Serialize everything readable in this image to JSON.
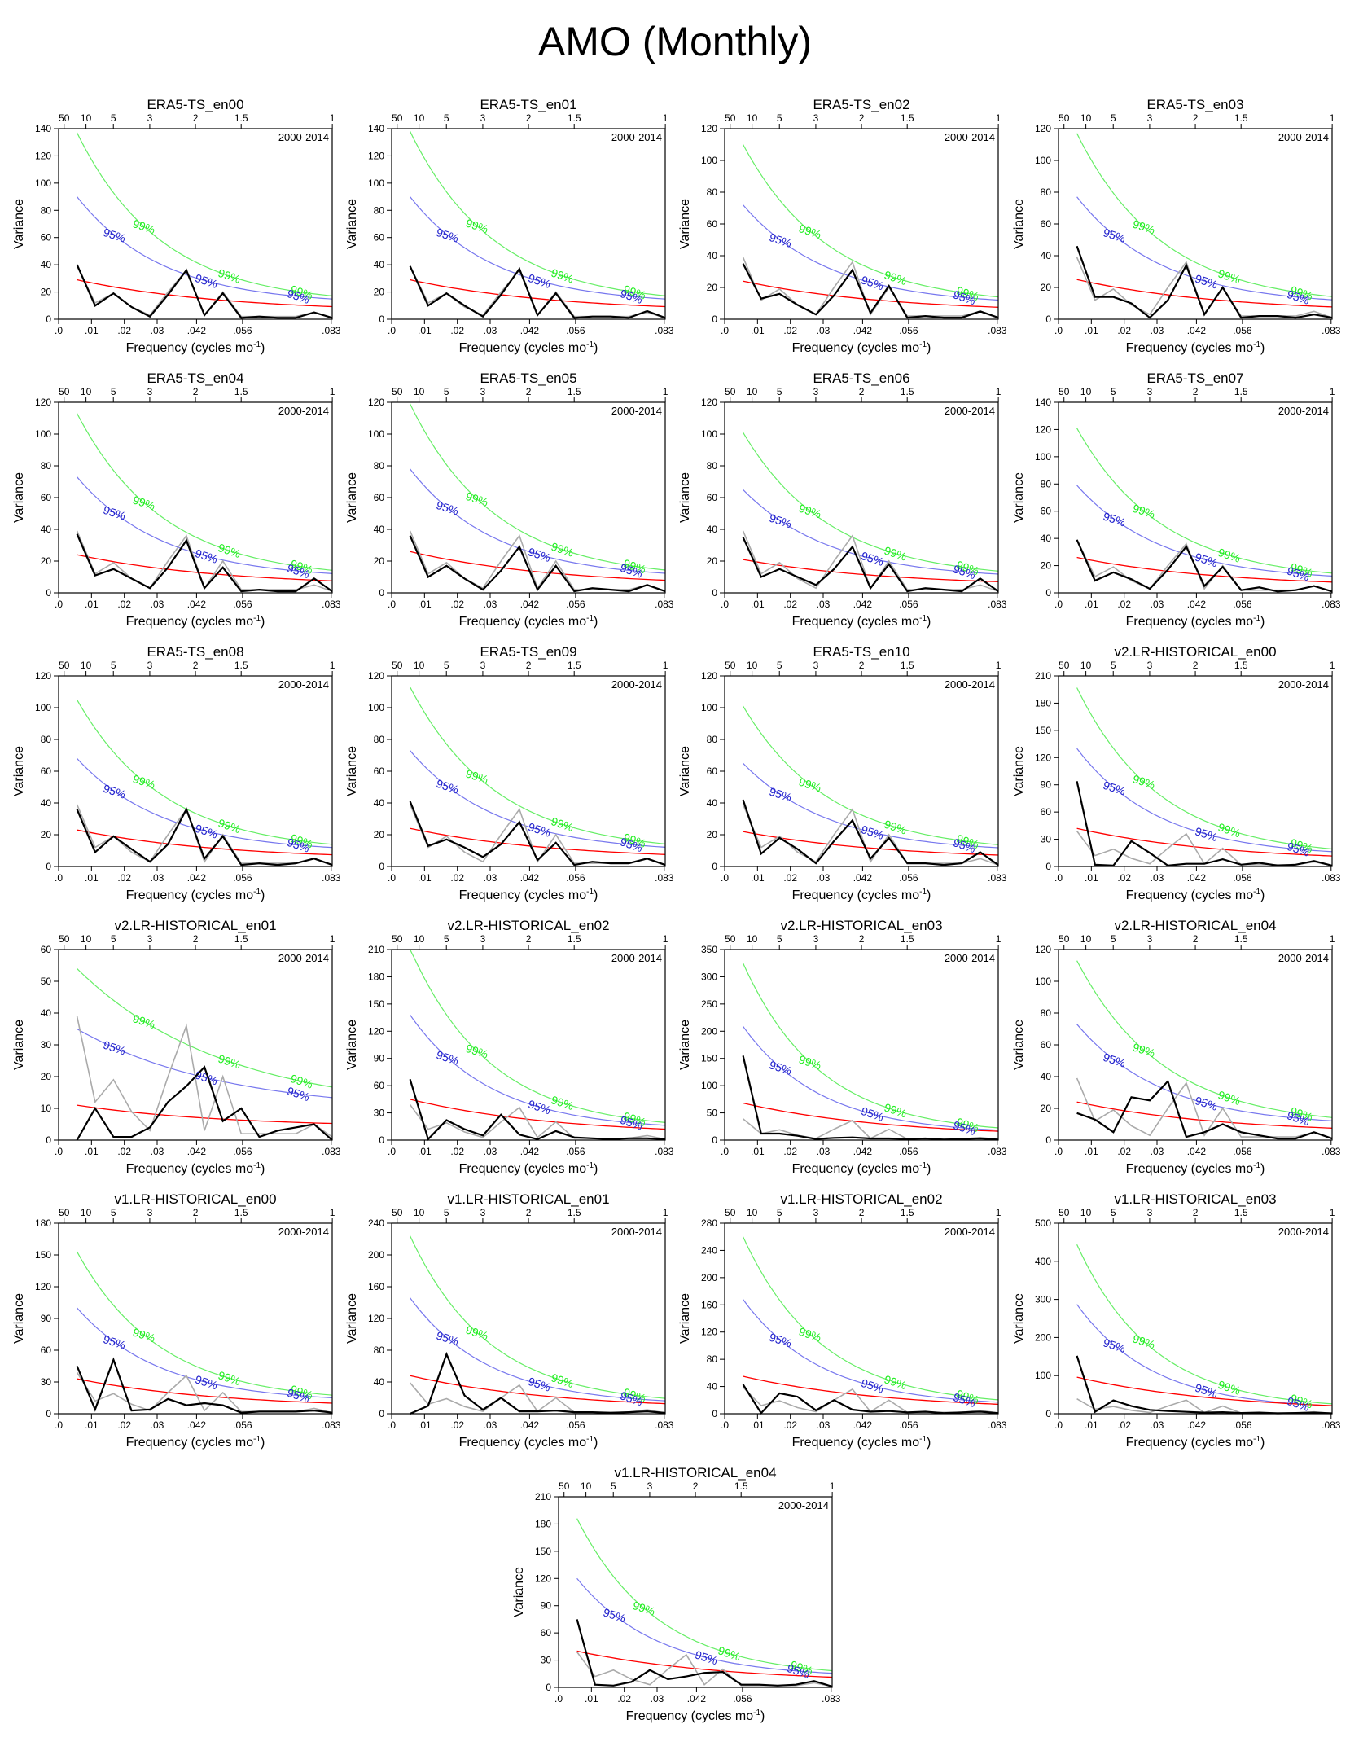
{
  "page_title": "AMO (Monthly)",
  "chart_data": {
    "type": "line",
    "title": "AMO (Monthly)",
    "shared": {
      "xlabel": "Frequency (cycles mo",
      "xlabel_sup": "-1",
      "ylabel": "Variance",
      "period_label": "2000-2014",
      "x_ticks": [
        0.0,
        0.01,
        0.02,
        0.03,
        0.042,
        0.056,
        0.083
      ],
      "x_tick_labels": [
        ".0",
        ".01",
        ".02",
        ".03",
        ".042",
        ".056",
        ".083"
      ],
      "top_ticks": [
        0.02,
        0.1,
        0.2,
        0.333,
        0.5,
        0.667,
        1.0
      ],
      "top_tick_labels": [
        "50",
        "10",
        "5",
        "3",
        "2",
        "1.5",
        "1"
      ],
      "xlim": [
        0,
        0.0833
      ],
      "freq": [
        0.0056,
        0.0111,
        0.0167,
        0.0222,
        0.0278,
        0.0333,
        0.0389,
        0.0444,
        0.05,
        0.0556,
        0.0611,
        0.0667,
        0.0722,
        0.0778,
        0.0833
      ],
      "legend": [
        {
          "name": "spectrum",
          "color": "#000000"
        },
        {
          "name": "spectrum (reference)",
          "color": "#aaaaaa"
        },
        {
          "name": "red-noise fit",
          "color": "#ff0000"
        },
        {
          "name": "95%",
          "color": "#2222cc"
        },
        {
          "name": "99%",
          "color": "#22ee22"
        }
      ],
      "conf_label_95": "95%",
      "conf_label_99": "99%",
      "gray_reference": [
        39,
        12,
        19,
        9,
        3,
        20,
        36,
        3,
        20,
        2,
        2,
        2,
        2,
        5,
        1
      ]
    },
    "panels": [
      {
        "title": "ERA5-TS_en00",
        "ymax": 140,
        "ystep": 20,
        "r0": 29,
        "r1": 5,
        "c95": 90,
        "c99": 137,
        "tail": 0.075,
        "black": [
          40,
          10,
          19,
          9,
          2,
          18,
          36,
          3,
          19,
          1,
          2,
          1,
          1,
          5,
          1
        ]
      },
      {
        "title": "ERA5-TS_en01",
        "ymax": 140,
        "ystep": 20,
        "r0": 29,
        "r1": 5,
        "c95": 90,
        "c99": 138,
        "tail": 0.075,
        "black": [
          39,
          10,
          19,
          10,
          2,
          18,
          37,
          3,
          19,
          1,
          2,
          2,
          1,
          6,
          1
        ]
      },
      {
        "title": "ERA5-TS_en02",
        "ymax": 120,
        "ystep": 20,
        "r0": 24,
        "r1": 4,
        "c95": 72,
        "c99": 110,
        "tail": 0.085,
        "black": [
          35,
          13,
          16,
          9,
          3,
          15,
          31,
          4,
          21,
          1,
          2,
          1,
          1,
          5,
          1
        ]
      },
      {
        "title": "ERA5-TS_en03",
        "ymax": 120,
        "ystep": 20,
        "r0": 25,
        "r1": 4,
        "c95": 77,
        "c99": 117,
        "tail": 0.08,
        "black": [
          46,
          14,
          14,
          10,
          1,
          12,
          34,
          3,
          20,
          1,
          2,
          2,
          1,
          3,
          1
        ]
      },
      {
        "title": "ERA5-TS_en04",
        "ymax": 120,
        "ystep": 20,
        "r0": 24,
        "r1": 4,
        "c95": 73,
        "c99": 113,
        "tail": 0.085,
        "black": [
          37,
          11,
          15,
          9,
          3,
          16,
          33,
          3,
          16,
          1,
          2,
          1,
          1,
          9,
          1
        ]
      },
      {
        "title": "ERA5-TS_en05",
        "ymax": 120,
        "ystep": 20,
        "r0": 26,
        "r1": 4,
        "c95": 78,
        "c99": 119,
        "tail": 0.08,
        "black": [
          36,
          10,
          17,
          9,
          2,
          14,
          29,
          2,
          17,
          1,
          3,
          2,
          1,
          5,
          1
        ]
      },
      {
        "title": "ERA5-TS_en06",
        "ymax": 120,
        "ystep": 20,
        "r0": 21,
        "r1": 4,
        "c95": 65,
        "c99": 101,
        "tail": 0.09,
        "black": [
          35,
          10,
          15,
          10,
          5,
          15,
          29,
          3,
          18,
          1,
          3,
          2,
          1,
          9,
          1
        ]
      },
      {
        "title": "ERA5-TS_en07",
        "ymax": 140,
        "ystep": 20,
        "r0": 26,
        "r1": 4,
        "c95": 79,
        "c99": 121,
        "tail": 0.08,
        "black": [
          39,
          9,
          15,
          10,
          3,
          17,
          34,
          5,
          19,
          2,
          4,
          1,
          2,
          5,
          1
        ]
      },
      {
        "title": "ERA5-TS_en08",
        "ymax": 120,
        "ystep": 20,
        "r0": 23,
        "r1": 4,
        "c95": 68,
        "c99": 105,
        "tail": 0.09,
        "black": [
          36,
          9,
          19,
          11,
          3,
          14,
          36,
          5,
          19,
          1,
          2,
          1,
          2,
          5,
          1
        ]
      },
      {
        "title": "ERA5-TS_en09",
        "ymax": 120,
        "ystep": 20,
        "r0": 24,
        "r1": 4,
        "c95": 73,
        "c99": 113,
        "tail": 0.085,
        "black": [
          41,
          13,
          17,
          12,
          6,
          14,
          28,
          4,
          15,
          1,
          3,
          2,
          2,
          5,
          1
        ]
      },
      {
        "title": "ERA5-TS_en10",
        "ymax": 120,
        "ystep": 20,
        "r0": 22,
        "r1": 4,
        "c95": 65,
        "c99": 101,
        "tail": 0.09,
        "black": [
          42,
          8,
          18,
          11,
          2,
          16,
          29,
          5,
          18,
          2,
          2,
          1,
          2,
          9,
          1
        ]
      },
      {
        "title": "v2.LR-HISTORICAL_en00",
        "ymax": 210,
        "ystep": 30,
        "r0": 42,
        "r1": 5,
        "c95": 130,
        "c99": 197,
        "tail": 0.06,
        "black": [
          94,
          2,
          1,
          28,
          15,
          1,
          3,
          3,
          8,
          2,
          4,
          1,
          2,
          6,
          1
        ]
      },
      {
        "title": "v2.LR-HISTORICAL_en01",
        "ymax": 60,
        "ystep": 10,
        "r0": 11,
        "r1": 4,
        "c95": 35,
        "c99": 54,
        "tail": 0.45,
        "black": [
          0,
          10,
          1,
          1,
          4,
          12,
          17,
          23,
          6,
          10,
          1,
          3,
          4,
          5,
          0
        ]
      },
      {
        "title": "v2.LR-HISTORICAL_en02",
        "ymax": 210,
        "ystep": 30,
        "r0": 45,
        "r1": 5,
        "c95": 138,
        "c99": 211,
        "tail": 0.05,
        "black": [
          67,
          1,
          22,
          12,
          5,
          28,
          6,
          1,
          10,
          3,
          2,
          1,
          2,
          2,
          1
        ]
      },
      {
        "title": "v2.LR-HISTORICAL_en03",
        "ymax": 350,
        "ystep": 50,
        "r0": 68,
        "r1": 5,
        "c95": 209,
        "c99": 325,
        "tail": 0.03,
        "black": [
          155,
          12,
          12,
          8,
          2,
          4,
          5,
          3,
          3,
          2,
          3,
          1,
          2,
          3,
          1
        ]
      },
      {
        "title": "v2.LR-HISTORICAL_en04",
        "ymax": 120,
        "ystep": 20,
        "r0": 24,
        "r1": 4,
        "c95": 73,
        "c99": 113,
        "tail": 0.085,
        "black": [
          17,
          13,
          5,
          27,
          25,
          37,
          2,
          5,
          10,
          5,
          3,
          1,
          1,
          5,
          1
        ]
      },
      {
        "title": "v1.LR-HISTORICAL_en00",
        "ymax": 180,
        "ystep": 30,
        "r0": 33,
        "r1": 5,
        "c95": 100,
        "c99": 153,
        "tail": 0.065,
        "black": [
          45,
          4,
          51,
          3,
          4,
          14,
          8,
          10,
          8,
          1,
          2,
          2,
          2,
          3,
          1
        ]
      },
      {
        "title": "v1.LR-HISTORICAL_en01",
        "ymax": 240,
        "ystep": 40,
        "r0": 48,
        "r1": 5,
        "c95": 146,
        "c99": 224,
        "tail": 0.04,
        "black": [
          0,
          10,
          75,
          23,
          5,
          20,
          3,
          3,
          4,
          2,
          2,
          1,
          2,
          3,
          1
        ]
      },
      {
        "title": "v1.LR-HISTORICAL_en02",
        "ymax": 280,
        "ystep": 40,
        "r0": 55,
        "r1": 5,
        "c95": 168,
        "c99": 260,
        "tail": 0.035,
        "black": [
          43,
          1,
          30,
          25,
          5,
          20,
          6,
          3,
          4,
          2,
          3,
          1,
          2,
          3,
          1
        ]
      },
      {
        "title": "v1.LR-HISTORICAL_en03",
        "ymax": 500,
        "ystep": 100,
        "r0": 96,
        "r1": 5,
        "c95": 287,
        "c99": 444,
        "tail": 0.02,
        "black": [
          152,
          5,
          35,
          20,
          10,
          7,
          5,
          3,
          4,
          2,
          3,
          1,
          2,
          3,
          1
        ]
      },
      {
        "title": "v1.LR-HISTORICAL_en04",
        "ymax": 210,
        "ystep": 30,
        "r0": 40,
        "r1": 5,
        "c95": 120,
        "c99": 186,
        "tail": 0.05,
        "black": [
          75,
          3,
          2,
          6,
          19,
          9,
          12,
          16,
          17,
          3,
          3,
          2,
          3,
          7,
          1
        ]
      }
    ]
  }
}
